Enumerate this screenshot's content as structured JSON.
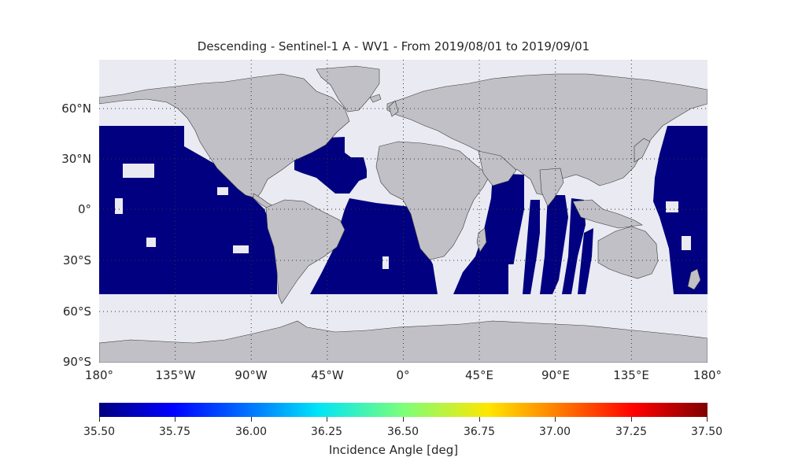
{
  "title": "Descending - Sentinel-1 A - WV1 - From 2019/08/01 to 2019/09/01",
  "map": {
    "projection": "plate carree",
    "lon_range": [
      -180,
      180
    ],
    "lat_range": [
      -90,
      90
    ],
    "gridlines": "dotted",
    "land_color": "#c0c0c6",
    "ocean_color": "#eaeaf2",
    "swath_color": "#000080",
    "lat_labels": [
      "60°N",
      "30°N",
      "0°",
      "30°S",
      "60°S",
      "90°S"
    ],
    "lon_labels": [
      "180°",
      "135°W",
      "90°W",
      "45°W",
      "0°",
      "45°E",
      "90°E",
      "135°E",
      "180°"
    ]
  },
  "colorbar": {
    "colormap": "jet",
    "range": [
      35.5,
      37.5
    ],
    "tick_labels": [
      "35.50",
      "35.75",
      "36.00",
      "36.25",
      "36.50",
      "36.75",
      "37.00",
      "37.25",
      "37.50"
    ],
    "label": "Incidence Angle [deg]"
  }
}
